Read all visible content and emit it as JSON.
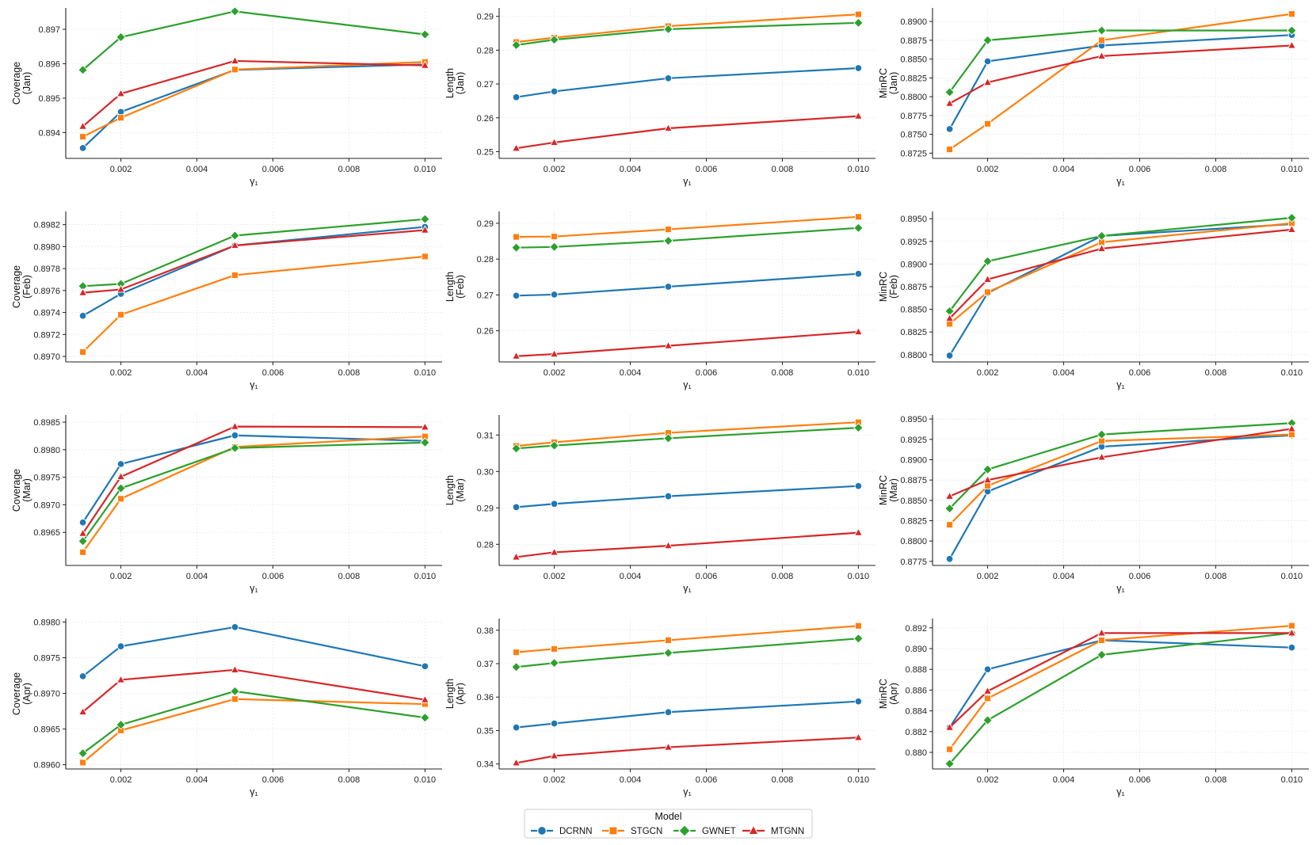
{
  "colors": {
    "DCRNN": "#1f77b4",
    "STGCN": "#ff7f0e",
    "GWNET": "#2ca02c",
    "MTGNN": "#d62728"
  },
  "series_markers": {
    "DCRNN": "circle",
    "STGCN": "square",
    "GWNET": "diamond",
    "MTGNN": "triangle"
  },
  "legend": {
    "title": "Model",
    "items": [
      "DCRNN",
      "STGCN",
      "GWNET",
      "MTGNN"
    ]
  },
  "chart_data": [
    {
      "type": "line",
      "ylabel_lines": [
        "Coverage",
        "(Jan)"
      ],
      "xlabel": "γ₁",
      "x": [
        0.001,
        0.002,
        0.005,
        0.01
      ],
      "xticks": [
        0.002,
        0.004,
        0.006,
        0.008,
        0.01
      ],
      "xtick_labels": [
        "0.002",
        "0.004",
        "0.006",
        "0.008",
        "0.010"
      ],
      "ylim": [
        0.89325,
        0.89762
      ],
      "yticks": [
        0.894,
        0.895,
        0.896,
        0.897
      ],
      "ytick_labels": [
        "0.894",
        "0.895",
        "0.896",
        "0.897"
      ],
      "series": [
        {
          "name": "DCRNN",
          "values": [
            0.89355,
            0.8946,
            0.89582,
            0.89598
          ]
        },
        {
          "name": "STGCN",
          "values": [
            0.89388,
            0.89443,
            0.89583,
            0.89605
          ]
        },
        {
          "name": "GWNET",
          "values": [
            0.89582,
            0.89677,
            0.89752,
            0.89685
          ]
        },
        {
          "name": "MTGNN",
          "values": [
            0.89418,
            0.89513,
            0.89608,
            0.89595
          ]
        }
      ]
    },
    {
      "type": "line",
      "ylabel_lines": [
        "Length",
        "(Jan)"
      ],
      "xlabel": "γ₁",
      "x": [
        0.001,
        0.002,
        0.005,
        0.01
      ],
      "xticks": [
        0.002,
        0.004,
        0.006,
        0.008,
        0.01
      ],
      "xtick_labels": [
        "0.002",
        "0.004",
        "0.006",
        "0.008",
        "0.010"
      ],
      "ylim": [
        0.248,
        0.2925
      ],
      "yticks": [
        0.25,
        0.26,
        0.27,
        0.28,
        0.29
      ],
      "ytick_labels": [
        "0.25",
        "0.26",
        "0.27",
        "0.28",
        "0.29"
      ],
      "series": [
        {
          "name": "DCRNN",
          "values": [
            0.2661,
            0.2678,
            0.2717,
            0.2747
          ]
        },
        {
          "name": "STGCN",
          "values": [
            0.2824,
            0.2837,
            0.2871,
            0.2906
          ]
        },
        {
          "name": "GWNET",
          "values": [
            0.2815,
            0.2831,
            0.2862,
            0.2881
          ]
        },
        {
          "name": "MTGNN",
          "values": [
            0.251,
            0.2527,
            0.2569,
            0.2605
          ]
        }
      ]
    },
    {
      "type": "line",
      "ylabel_lines": [
        "MinRC",
        "(Jan)"
      ],
      "xlabel": "γ₁",
      "x": [
        0.001,
        0.002,
        0.005,
        0.01
      ],
      "xticks": [
        0.002,
        0.004,
        0.006,
        0.008,
        0.01
      ],
      "xtick_labels": [
        "0.002",
        "0.004",
        "0.006",
        "0.008",
        "0.010"
      ],
      "ylim": [
        0.8718,
        0.8918
      ],
      "yticks": [
        0.8725,
        0.875,
        0.8775,
        0.88,
        0.8825,
        0.885,
        0.8875,
        0.89
      ],
      "ytick_labels": [
        "0.8725",
        "0.8750",
        "0.8775",
        "0.8800",
        "0.8825",
        "0.8850",
        "0.8875",
        "0.8900"
      ],
      "series": [
        {
          "name": "DCRNN",
          "values": [
            0.8757,
            0.8847,
            0.8868,
            0.8882
          ]
        },
        {
          "name": "STGCN",
          "values": [
            0.873,
            0.8764,
            0.8875,
            0.891
          ]
        },
        {
          "name": "GWNET",
          "values": [
            0.8806,
            0.8875,
            0.8888,
            0.8888
          ]
        },
        {
          "name": "MTGNN",
          "values": [
            0.8791,
            0.8819,
            0.8854,
            0.8868
          ]
        }
      ]
    },
    {
      "type": "line",
      "ylabel_lines": [
        "Coverage",
        "(Feb)"
      ],
      "xlabel": "γ₁",
      "x": [
        0.001,
        0.002,
        0.005,
        0.01
      ],
      "xticks": [
        0.002,
        0.004,
        0.006,
        0.008,
        0.01
      ],
      "xtick_labels": [
        "0.002",
        "0.004",
        "0.006",
        "0.008",
        "0.010"
      ],
      "ylim": [
        0.89695,
        0.89832
      ],
      "yticks": [
        0.897,
        0.8972,
        0.8974,
        0.8976,
        0.8978,
        0.898,
        0.8982
      ],
      "ytick_labels": [
        "0.8970",
        "0.8972",
        "0.8974",
        "0.8976",
        "0.8978",
        "0.8980",
        "0.8982"
      ],
      "series": [
        {
          "name": "DCRNN",
          "values": [
            0.89737,
            0.89757,
            0.89801,
            0.89818
          ]
        },
        {
          "name": "STGCN",
          "values": [
            0.89704,
            0.89738,
            0.89774,
            0.89791
          ]
        },
        {
          "name": "GWNET",
          "values": [
            0.89764,
            0.89766,
            0.8981,
            0.89825
          ]
        },
        {
          "name": "MTGNN",
          "values": [
            0.89758,
            0.89761,
            0.89801,
            0.89815
          ]
        }
      ]
    },
    {
      "type": "line",
      "ylabel_lines": [
        "Length",
        "(Feb)"
      ],
      "xlabel": "γ₁",
      "x": [
        0.001,
        0.002,
        0.005,
        0.01
      ],
      "xticks": [
        0.002,
        0.004,
        0.006,
        0.008,
        0.01
      ],
      "xtick_labels": [
        "0.002",
        "0.004",
        "0.006",
        "0.008",
        "0.010"
      ],
      "ylim": [
        0.2513,
        0.2933
      ],
      "yticks": [
        0.26,
        0.27,
        0.28,
        0.29
      ],
      "ytick_labels": [
        "0.26",
        "0.27",
        "0.28",
        "0.29"
      ],
      "series": [
        {
          "name": "DCRNN",
          "values": [
            0.2698,
            0.2701,
            0.2723,
            0.2759
          ]
        },
        {
          "name": "STGCN",
          "values": [
            0.2862,
            0.2863,
            0.2883,
            0.2918
          ]
        },
        {
          "name": "GWNET",
          "values": [
            0.2832,
            0.2834,
            0.2851,
            0.2887
          ]
        },
        {
          "name": "MTGNN",
          "values": [
            0.2529,
            0.2535,
            0.2558,
            0.2597
          ]
        }
      ]
    },
    {
      "type": "line",
      "ylabel_lines": [
        "MinRC",
        "(Feb)"
      ],
      "xlabel": "γ₁",
      "x": [
        0.001,
        0.002,
        0.005,
        0.01
      ],
      "xticks": [
        0.002,
        0.004,
        0.006,
        0.008,
        0.01
      ],
      "xtick_labels": [
        "0.002",
        "0.004",
        "0.006",
        "0.008",
        "0.010"
      ],
      "ylim": [
        0.8792,
        0.8958
      ],
      "yticks": [
        0.88,
        0.8825,
        0.885,
        0.8875,
        0.89,
        0.8925,
        0.895
      ],
      "ytick_labels": [
        "0.8800",
        "0.8825",
        "0.8850",
        "0.8875",
        "0.8900",
        "0.8925",
        "0.8950"
      ],
      "series": [
        {
          "name": "DCRNN",
          "values": [
            0.8799,
            0.8868,
            0.8931,
            0.8944
          ]
        },
        {
          "name": "STGCN",
          "values": [
            0.8834,
            0.8869,
            0.8924,
            0.8945
          ]
        },
        {
          "name": "GWNET",
          "values": [
            0.8848,
            0.8903,
            0.8931,
            0.8951
          ]
        },
        {
          "name": "MTGNN",
          "values": [
            0.884,
            0.8883,
            0.8917,
            0.8938
          ]
        }
      ]
    },
    {
      "type": "line",
      "ylabel_lines": [
        "Coverage",
        "(Mar)"
      ],
      "xlabel": "γ₁",
      "x": [
        0.001,
        0.002,
        0.005,
        0.01
      ],
      "xticks": [
        0.002,
        0.004,
        0.006,
        0.008,
        0.01
      ],
      "xtick_labels": [
        "0.002",
        "0.004",
        "0.006",
        "0.008",
        "0.010"
      ],
      "ylim": [
        0.8959,
        0.89863
      ],
      "yticks": [
        0.8965,
        0.897,
        0.8975,
        0.898,
        0.8985
      ],
      "ytick_labels": [
        "0.8965",
        "0.8970",
        "0.8975",
        "0.8980",
        "0.8985"
      ],
      "series": [
        {
          "name": "DCRNN",
          "values": [
            0.89668,
            0.89774,
            0.89826,
            0.89816
          ]
        },
        {
          "name": "STGCN",
          "values": [
            0.89614,
            0.89711,
            0.89805,
            0.89824
          ]
        },
        {
          "name": "GWNET",
          "values": [
            0.89634,
            0.8973,
            0.89803,
            0.89813
          ]
        },
        {
          "name": "MTGNN",
          "values": [
            0.89648,
            0.89751,
            0.89842,
            0.89841
          ]
        }
      ]
    },
    {
      "type": "line",
      "ylabel_lines": [
        "Length",
        "(Mar)"
      ],
      "xlabel": "γ₁",
      "x": [
        0.001,
        0.002,
        0.005,
        0.01
      ],
      "xticks": [
        0.002,
        0.004,
        0.006,
        0.008,
        0.01
      ],
      "xtick_labels": [
        "0.002",
        "0.004",
        "0.006",
        "0.008",
        "0.010"
      ],
      "ylim": [
        0.2742,
        0.3155
      ],
      "yticks": [
        0.28,
        0.29,
        0.3,
        0.31
      ],
      "ytick_labels": [
        "0.28",
        "0.29",
        "0.30",
        "0.31"
      ],
      "series": [
        {
          "name": "DCRNN",
          "values": [
            0.2902,
            0.2911,
            0.2932,
            0.296
          ]
        },
        {
          "name": "STGCN",
          "values": [
            0.307,
            0.308,
            0.3106,
            0.3135
          ]
        },
        {
          "name": "GWNET",
          "values": [
            0.3063,
            0.3071,
            0.3091,
            0.312
          ]
        },
        {
          "name": "MTGNN",
          "values": [
            0.2765,
            0.2778,
            0.2796,
            0.2832
          ]
        }
      ]
    },
    {
      "type": "line",
      "ylabel_lines": [
        "MinRC",
        "(Mar)"
      ],
      "xlabel": "γ₁",
      "x": [
        0.001,
        0.002,
        0.005,
        0.01
      ],
      "xticks": [
        0.002,
        0.004,
        0.006,
        0.008,
        0.01
      ],
      "xtick_labels": [
        "0.002",
        "0.004",
        "0.006",
        "0.008",
        "0.010"
      ],
      "ylim": [
        0.877,
        0.8955
      ],
      "yticks": [
        0.8775,
        0.88,
        0.8825,
        0.885,
        0.8875,
        0.89,
        0.8925,
        0.895
      ],
      "ytick_labels": [
        "0.8775",
        "0.8800",
        "0.8825",
        "0.8850",
        "0.8875",
        "0.8900",
        "0.8925",
        "0.8950"
      ],
      "series": [
        {
          "name": "DCRNN",
          "values": [
            0.8778,
            0.8861,
            0.8916,
            0.893
          ]
        },
        {
          "name": "STGCN",
          "values": [
            0.882,
            0.8868,
            0.8923,
            0.8931
          ]
        },
        {
          "name": "GWNET",
          "values": [
            0.884,
            0.8888,
            0.8931,
            0.8945
          ]
        },
        {
          "name": "MTGNN",
          "values": [
            0.8855,
            0.8875,
            0.8903,
            0.8938
          ]
        }
      ]
    },
    {
      "type": "line",
      "ylabel_lines": [
        "Coverage",
        "(Apr)"
      ],
      "xlabel": "γ₁",
      "x": [
        0.001,
        0.002,
        0.005,
        0.01
      ],
      "xticks": [
        0.002,
        0.004,
        0.006,
        0.008,
        0.01
      ],
      "xtick_labels": [
        "0.002",
        "0.004",
        "0.006",
        "0.008",
        "0.010"
      ],
      "ylim": [
        0.89594,
        0.89805
      ],
      "yticks": [
        0.896,
        0.8965,
        0.897,
        0.8975,
        0.898
      ],
      "ytick_labels": [
        "0.8960",
        "0.8965",
        "0.8970",
        "0.8975",
        "0.8980"
      ],
      "series": [
        {
          "name": "DCRNN",
          "values": [
            0.89724,
            0.89766,
            0.89793,
            0.89738
          ]
        },
        {
          "name": "STGCN",
          "values": [
            0.89603,
            0.89648,
            0.89692,
            0.89685
          ]
        },
        {
          "name": "GWNET",
          "values": [
            0.89616,
            0.89656,
            0.89703,
            0.89666
          ]
        },
        {
          "name": "MTGNN",
          "values": [
            0.89674,
            0.89719,
            0.89733,
            0.89691
          ]
        }
      ]
    },
    {
      "type": "line",
      "ylabel_lines": [
        "Length",
        "(Apr)"
      ],
      "xlabel": "γ₁",
      "x": [
        0.001,
        0.002,
        0.005,
        0.01
      ],
      "xticks": [
        0.002,
        0.004,
        0.006,
        0.008,
        0.01
      ],
      "xtick_labels": [
        "0.002",
        "0.004",
        "0.006",
        "0.008",
        "0.010"
      ],
      "ylim": [
        0.3385,
        0.3835
      ],
      "yticks": [
        0.34,
        0.35,
        0.36,
        0.37,
        0.38
      ],
      "ytick_labels": [
        "0.34",
        "0.35",
        "0.36",
        "0.37",
        "0.38"
      ],
      "series": [
        {
          "name": "DCRNN",
          "values": [
            0.3509,
            0.3521,
            0.3555,
            0.3587
          ]
        },
        {
          "name": "STGCN",
          "values": [
            0.3734,
            0.3744,
            0.377,
            0.3813
          ]
        },
        {
          "name": "GWNET",
          "values": [
            0.369,
            0.3702,
            0.3732,
            0.3775
          ]
        },
        {
          "name": "MTGNN",
          "values": [
            0.3403,
            0.3424,
            0.345,
            0.3479
          ]
        }
      ]
    },
    {
      "type": "line",
      "ylabel_lines": [
        "MinRC",
        "(Apr)"
      ],
      "xlabel": "γ₁",
      "x": [
        0.001,
        0.002,
        0.005,
        0.01
      ],
      "xticks": [
        0.002,
        0.004,
        0.006,
        0.008,
        0.01
      ],
      "xtick_labels": [
        "0.002",
        "0.004",
        "0.006",
        "0.008",
        "0.010"
      ],
      "ylim": [
        0.8784,
        0.8929
      ],
      "yticks": [
        0.88,
        0.882,
        0.884,
        0.886,
        0.888,
        0.89,
        0.892
      ],
      "ytick_labels": [
        "0.880",
        "0.882",
        "0.884",
        "0.886",
        "0.888",
        "0.890",
        "0.892"
      ],
      "series": [
        {
          "name": "DCRNN",
          "values": [
            0.8824,
            0.888,
            0.8908,
            0.8901
          ]
        },
        {
          "name": "STGCN",
          "values": [
            0.8803,
            0.8852,
            0.8908,
            0.8922
          ]
        },
        {
          "name": "GWNET",
          "values": [
            0.8789,
            0.8831,
            0.8894,
            0.8915
          ]
        },
        {
          "name": "MTGNN",
          "values": [
            0.8824,
            0.8859,
            0.8915,
            0.8915
          ]
        }
      ]
    }
  ]
}
